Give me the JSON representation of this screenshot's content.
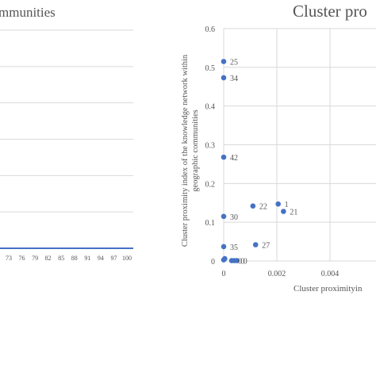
{
  "chart_data": [
    {
      "type": "line",
      "title": "mmunities",
      "x_tick_labels": [
        "73",
        "76",
        "79",
        "82",
        "85",
        "88",
        "91",
        "94",
        "97",
        "100"
      ],
      "ylim": [
        0,
        1
      ],
      "grid": "horizontal",
      "series": [
        {
          "values": [
            0,
            0,
            0,
            0,
            0,
            0,
            0,
            0,
            0,
            0
          ],
          "color": "#4472c4"
        }
      ]
    },
    {
      "type": "scatter",
      "title": "Cluster pro",
      "xlabel": "Cluster proximityin",
      "ylabel_line1": "Cluster proximity index of the knowledge network within",
      "ylabel_line2": "geographic communities",
      "xlim": [
        0,
        0.006
      ],
      "ylim": [
        0,
        0.6
      ],
      "x_ticks": [
        0,
        0.002,
        0.004
      ],
      "x_tick_labels": [
        "0",
        "0.002",
        "0.004"
      ],
      "y_ticks": [
        0,
        0.1,
        0.2,
        0.3,
        0.4,
        0.5,
        0.6
      ],
      "y_tick_labels": [
        "0",
        "0.1",
        "0.2",
        "0.3",
        "0.4",
        "0.5",
        "0.6"
      ],
      "grid": "both",
      "marker_color": "#4472c4",
      "points": [
        {
          "x": 0,
          "y": 0.515,
          "label": "25"
        },
        {
          "x": 0,
          "y": 0.473,
          "label": "34"
        },
        {
          "x": 0,
          "y": 0.268,
          "label": "42"
        },
        {
          "x": 0,
          "y": 0.115,
          "label": "30"
        },
        {
          "x": 0,
          "y": 0.037,
          "label": "35"
        },
        {
          "x": 0,
          "y": 0.003,
          "label": ""
        },
        {
          "x": 4e-05,
          "y": 0.006,
          "label": ""
        },
        {
          "x": 0.0003,
          "y": 0.001,
          "label": "0"
        },
        {
          "x": 0.0004,
          "y": 0.001,
          "label": "0"
        },
        {
          "x": 0.0005,
          "y": 0.001,
          "label": "0"
        },
        {
          "x": 0.0011,
          "y": 0.142,
          "label": "22"
        },
        {
          "x": 0.00205,
          "y": 0.147,
          "label": "1"
        },
        {
          "x": 0.00225,
          "y": 0.128,
          "label": "21"
        },
        {
          "x": 0.0012,
          "y": 0.042,
          "label": "27"
        }
      ]
    }
  ]
}
